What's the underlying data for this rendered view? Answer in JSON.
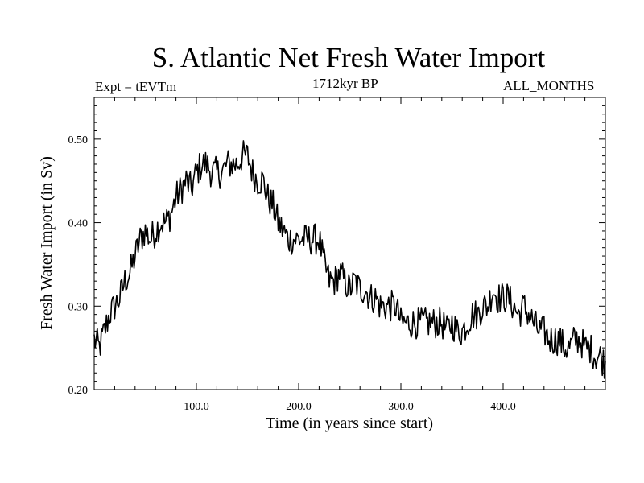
{
  "header": {
    "title": "S. Atlantic Net Fresh Water Import",
    "experiment": "Expt = tEVTm",
    "period": "1712kyr BP",
    "months": "ALL_MONTHS"
  },
  "chart_data": {
    "type": "line",
    "title": "S. Atlantic Net Fresh Water Import",
    "xlabel": "Time (in years since start)",
    "ylabel": "Fresh Water Import (in Sv)",
    "xlim": [
      0,
      500
    ],
    "ylim": [
      0.2,
      0.55
    ],
    "x_ticks": [
      100,
      200,
      300,
      400
    ],
    "x_tick_labels": [
      "100.0",
      "200.0",
      "300.0",
      "400.0"
    ],
    "y_ticks": [
      0.2,
      0.3,
      0.4,
      0.5
    ],
    "y_tick_labels": [
      "0.20",
      "0.30",
      "0.40",
      "0.50"
    ],
    "series": [
      {
        "name": "Fresh Water Import",
        "x_step": 5,
        "y": [
          0.26,
          0.25,
          0.27,
          0.29,
          0.3,
          0.31,
          0.33,
          0.34,
          0.36,
          0.38,
          0.39,
          0.38,
          0.39,
          0.4,
          0.4,
          0.41,
          0.43,
          0.44,
          0.45,
          0.44,
          0.46,
          0.47,
          0.47,
          0.46,
          0.46,
          0.46,
          0.47,
          0.47,
          0.47,
          0.48,
          0.48,
          0.46,
          0.45,
          0.45,
          0.43,
          0.42,
          0.4,
          0.39,
          0.38,
          0.38,
          0.38,
          0.38,
          0.38,
          0.38,
          0.38,
          0.35,
          0.33,
          0.33,
          0.34,
          0.33,
          0.32,
          0.33,
          0.32,
          0.32,
          0.31,
          0.31,
          0.3,
          0.3,
          0.3,
          0.3,
          0.28,
          0.28,
          0.28,
          0.28,
          0.28,
          0.28,
          0.28,
          0.28,
          0.28,
          0.27,
          0.28,
          0.27,
          0.27,
          0.28,
          0.29,
          0.29,
          0.3,
          0.3,
          0.32,
          0.31,
          0.31,
          0.31,
          0.3,
          0.29,
          0.3,
          0.29,
          0.28,
          0.27,
          0.27,
          0.26,
          0.26,
          0.26,
          0.25,
          0.25,
          0.26,
          0.26,
          0.25,
          0.25,
          0.24,
          0.24,
          0.23
        ],
        "noise_amplitude": 0.012,
        "color": "#000000"
      }
    ]
  }
}
